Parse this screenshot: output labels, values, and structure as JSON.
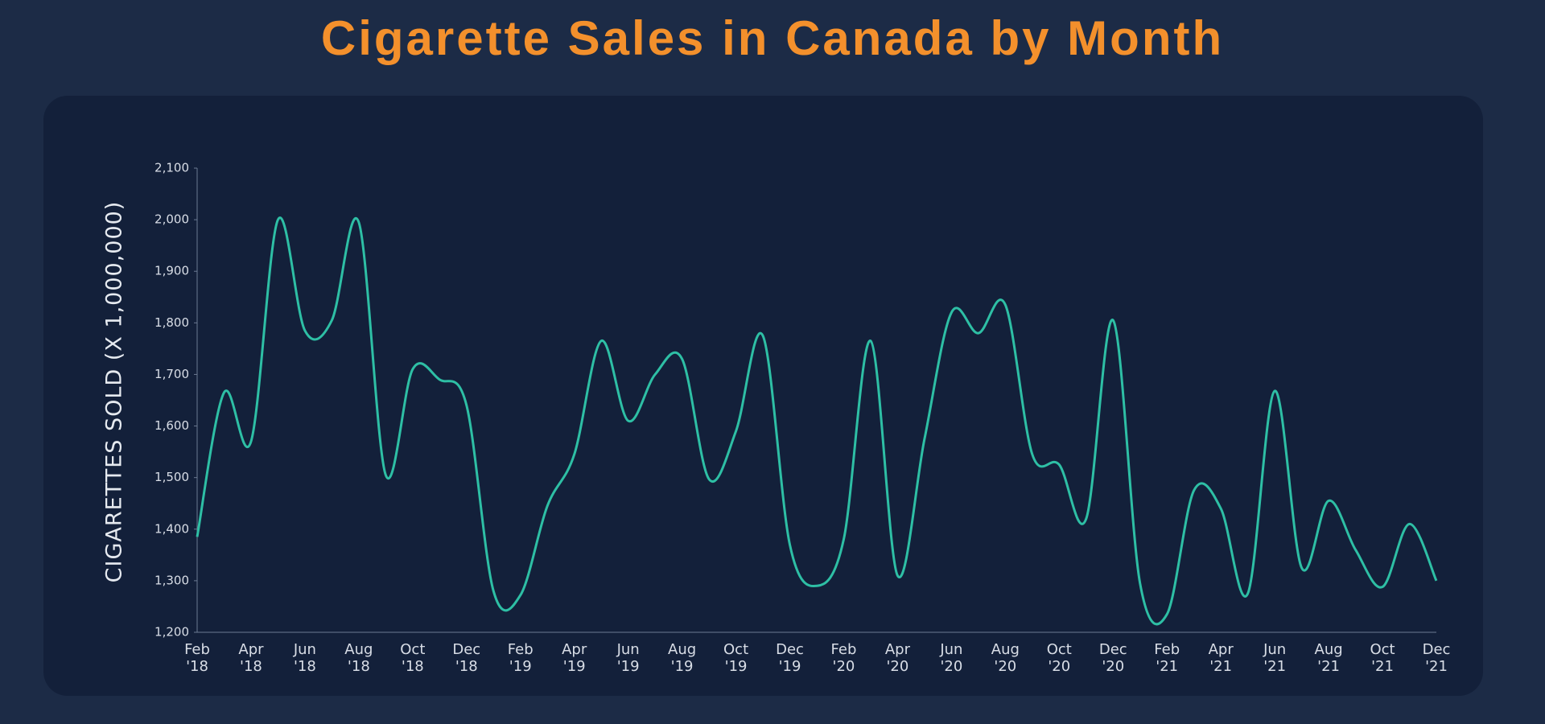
{
  "chart_data": {
    "type": "line",
    "title": "Cigarette Sales in Canada by Month",
    "y_label": "CIGARETTES SOLD (X 1,000,000)",
    "categories": [
      "Feb '18",
      null,
      "Apr '18",
      null,
      "Jun '18",
      null,
      "Aug '18",
      null,
      "Oct '18",
      null,
      "Dec '18",
      null,
      "Feb '19",
      null,
      "Apr '19",
      null,
      "Jun '19",
      null,
      "Aug '19",
      null,
      "Oct '19",
      null,
      "Dec '19",
      null,
      "Feb '20",
      null,
      "Apr '20",
      null,
      "Jun '20",
      null,
      "Aug '20",
      null,
      "Oct '20",
      null,
      "Dec '20",
      null,
      "Feb '21",
      null,
      "Apr '21",
      null,
      "Jun '21",
      null,
      "Aug '21",
      null,
      "Oct '21",
      null,
      "Dec '21"
    ],
    "values": [
      1385,
      1665,
      1570,
      2000,
      1785,
      1805,
      1995,
      1505,
      1710,
      1690,
      1640,
      1280,
      1272,
      1445,
      1545,
      1765,
      1610,
      1700,
      1730,
      1497,
      1590,
      1775,
      1370,
      1290,
      1380,
      1765,
      1310,
      1575,
      1820,
      1780,
      1835,
      1545,
      1525,
      1420,
      1805,
      1295,
      1235,
      1475,
      1440,
      1275,
      1668,
      1325,
      1455,
      1360,
      1288,
      1410,
      1300
    ],
    "color": "#2ebfa5",
    "ylim": [
      1200,
      2100
    ],
    "yticks": [
      {
        "value": 1200,
        "label": "1,200"
      },
      {
        "value": 1300,
        "label": "1,300"
      },
      {
        "value": 1400,
        "label": "1,400"
      },
      {
        "value": 1500,
        "label": "1,500"
      },
      {
        "value": 1600,
        "label": "1,600"
      },
      {
        "value": 1700,
        "label": "1,700"
      },
      {
        "value": 1800,
        "label": "1,800"
      },
      {
        "value": 1900,
        "label": "1,900"
      },
      {
        "value": 2000,
        "label": "2,000"
      },
      {
        "value": 2100,
        "label": "2,100"
      }
    ],
    "grid": false
  }
}
